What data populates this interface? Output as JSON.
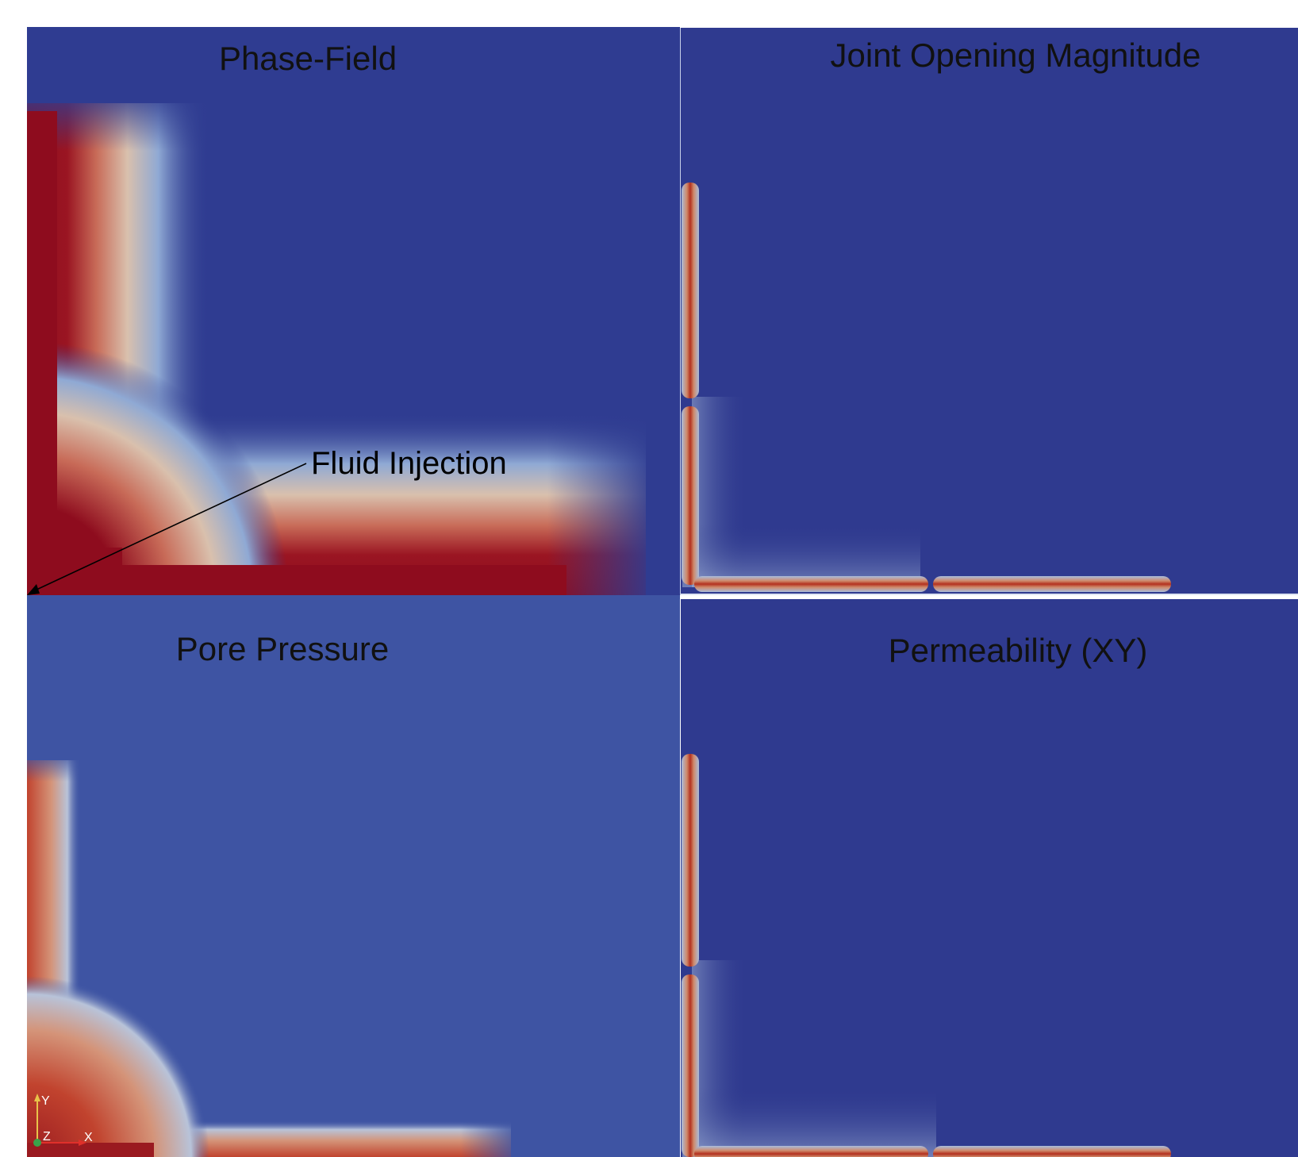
{
  "panels": [
    {
      "title": "Phase-Field"
    },
    {
      "title": "Joint Opening Magnitude"
    },
    {
      "title": "Pore Pressure"
    },
    {
      "title": "Permeability (XY)"
    }
  ],
  "annotation": {
    "label": "Fluid Injection"
  },
  "orientation_triad": {
    "y": "Y",
    "z": "Z",
    "x": "X"
  },
  "colors": {
    "field_background_top_left": "#2f3c91",
    "field_background": "#2f3a8f",
    "pore_pressure_background": "#3e54a3",
    "high_value": "#8e0c1e",
    "mid_value": "#d08a6a",
    "transition": "#a9bcdc"
  }
}
